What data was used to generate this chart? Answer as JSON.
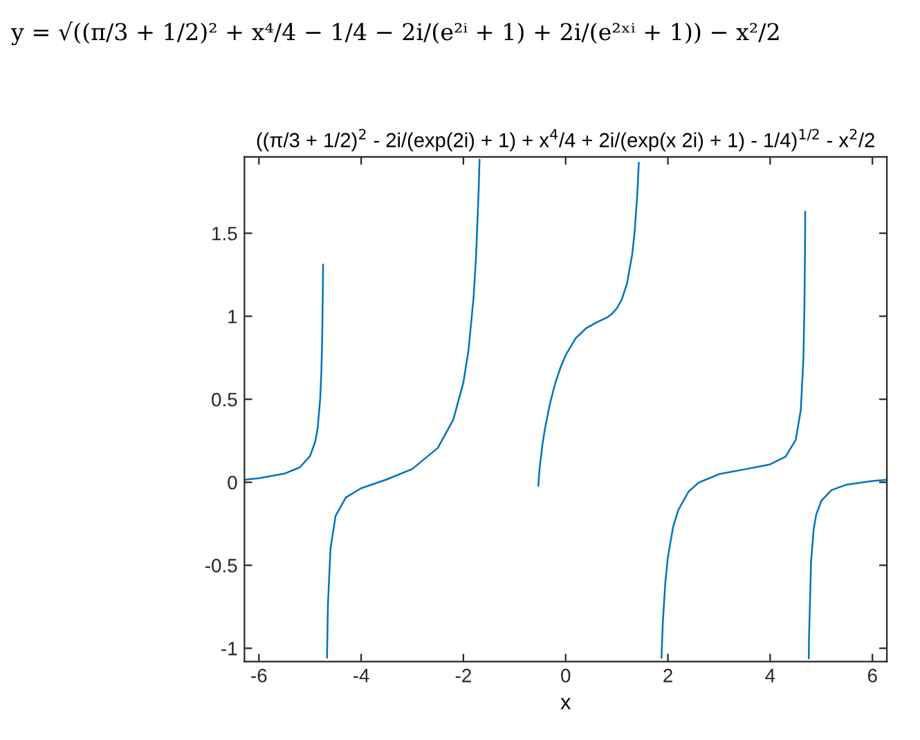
{
  "chart_data": {
    "type": "line",
    "title": "((π/3 + 1/2)$^{2}$ - 2i/(exp(2i) + 1) + x$^{4}$/4 + 2i/(exp(x 2i) + 1) - 1/4)$^{1/2}$ - x$^{2}$/2",
    "xlabel": "x",
    "annotations": [
      "y = √((π/3 + 1/2)² + x⁴/4 − 1/4 − 2i/(e²ⁱ + 1) + 2i/(e²ˣⁱ + 1)) − x²/2"
    ],
    "series": [
      {
        "color": "#0072bd",
        "x": [
          -6.283,
          -6.0,
          -5.5,
          -5.2,
          -5.0,
          -4.9,
          -4.85,
          -4.8,
          -4.78,
          -4.77,
          -4.76,
          -4.75,
          -4.745,
          null,
          -4.668,
          -4.65,
          -4.6,
          -4.5,
          -4.3,
          -4.0,
          -3.5,
          -3.0,
          -2.5,
          -2.2,
          -2.0,
          -1.9,
          -1.8,
          -1.75,
          -1.7,
          -1.69,
          -1.685,
          null,
          -0.535,
          -0.52,
          -0.5,
          -0.45,
          -0.4,
          -0.3,
          -0.2,
          -0.1,
          0.0,
          0.2,
          0.4,
          0.6,
          0.8,
          0.9,
          1.0,
          1.1,
          1.2,
          1.3,
          1.35,
          1.4,
          1.42,
          1.43,
          null,
          1.875,
          1.88,
          1.9,
          1.95,
          2.0,
          2.1,
          2.2,
          2.4,
          2.6,
          3.0,
          3.5,
          4.0,
          4.3,
          4.5,
          4.6,
          4.65,
          4.67,
          4.68,
          4.686,
          null,
          4.755,
          4.76,
          4.8,
          4.85,
          4.9,
          5.0,
          5.2,
          5.5,
          6.0,
          6.283
        ],
        "values": [
          0.015,
          0.024,
          0.052,
          0.09,
          0.158,
          0.243,
          0.327,
          0.509,
          0.654,
          0.762,
          0.916,
          1.146,
          1.312,
          null,
          -1.058,
          -0.739,
          -0.399,
          -0.202,
          -0.092,
          -0.036,
          0.017,
          0.08,
          0.207,
          0.376,
          0.602,
          0.797,
          1.118,
          1.376,
          1.776,
          1.886,
          1.944,
          null,
          -0.022,
          0.044,
          0.111,
          0.236,
          0.332,
          0.483,
          0.6,
          0.692,
          0.766,
          0.869,
          0.928,
          0.962,
          0.991,
          1.013,
          1.047,
          1.103,
          1.198,
          1.369,
          1.512,
          1.73,
          1.852,
          1.925,
          null,
          -1.058,
          -1.007,
          -0.848,
          -0.601,
          -0.45,
          -0.272,
          -0.169,
          -0.058,
          -0.002,
          0.049,
          0.078,
          0.108,
          0.154,
          0.255,
          0.438,
          0.742,
          1.057,
          1.352,
          1.63,
          null,
          -1.061,
          -0.939,
          -0.479,
          -0.285,
          -0.196,
          -0.112,
          -0.047,
          -0.014,
          0.008,
          0.015
        ]
      }
    ],
    "xlim": [
      -6.283,
      6.283
    ],
    "ylim": [
      -1.08,
      1.96
    ],
    "xticks": [
      -6,
      -4,
      -2,
      0,
      2,
      4,
      6
    ],
    "yticks": [
      -1,
      -0.5,
      0,
      0.5,
      1,
      1.5
    ],
    "grid": false,
    "legend": false
  }
}
